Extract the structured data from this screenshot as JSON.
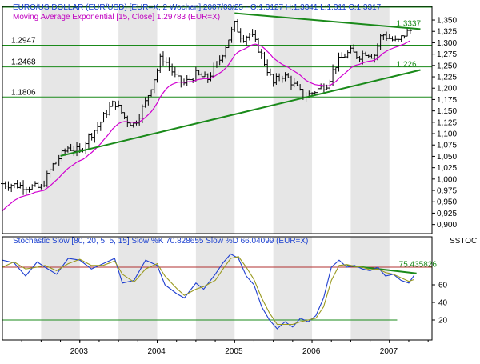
{
  "chart_data": [
    {
      "type": "ohlc",
      "title": "EURO/US DOLLAR (EUR/USD) [EUR=X, 2 Wochen] 2007/03/25 - O:1.3127 H:1.3341 L:1.311 C:1.3317",
      "indicator_label": "Moving Average Exponential [15, Close] 1.29783 (EUR=X)",
      "x_axis": {
        "tick_labels": [
          "2003",
          "2004",
          "2005",
          "2006",
          "2007"
        ]
      },
      "y_axis": {
        "range": [
          0.88,
          1.38
        ],
        "tick_values": [
          0.9,
          0.925,
          0.95,
          0.975,
          1.0,
          1.025,
          1.05,
          1.075,
          1.1,
          1.125,
          1.15,
          1.175,
          1.2,
          1.225,
          1.25,
          1.275,
          1.3,
          1.325,
          1.35
        ],
        "tick_labels": [
          "0,900",
          "0,925",
          "0,950",
          "0,975",
          "1,000",
          "1,025",
          "1,050",
          "1,075",
          "1,100",
          "1,125",
          "1,150",
          "1,175",
          "1,200",
          "1,225",
          "1,250",
          "1,275",
          "1,300",
          "1,325",
          "1,350"
        ]
      },
      "horizontal_levels": [
        {
          "label": "1.2947",
          "value": 1.2947
        },
        {
          "label": "1.2468",
          "value": 1.2468
        },
        {
          "label": "1.1806",
          "value": 1.1806
        }
      ],
      "trendlines": [
        {
          "label": "1.3337",
          "from": {
            "year": 2005.0,
            "value": 1.365
          },
          "to": {
            "year": 2007.4,
            "value": 1.33
          }
        },
        {
          "label": "1.226",
          "from": {
            "year": 2002.75,
            "value": 1.051
          },
          "to": {
            "year": 2007.4,
            "value": 1.24
          }
        }
      ],
      "price_path": {
        "description_points": [
          [
            2002.0,
            0.99
          ],
          [
            2002.25,
            0.985
          ],
          [
            2002.5,
            0.98
          ],
          [
            2002.65,
            1.03
          ],
          [
            2002.75,
            1.05
          ],
          [
            2002.85,
            1.07
          ],
          [
            2003.0,
            1.06
          ],
          [
            2003.1,
            1.09
          ],
          [
            2003.25,
            1.12
          ],
          [
            2003.35,
            1.15
          ],
          [
            2003.45,
            1.17
          ],
          [
            2003.6,
            1.13
          ],
          [
            2003.7,
            1.12
          ],
          [
            2003.85,
            1.17
          ],
          [
            2004.0,
            1.24
          ],
          [
            2004.05,
            1.27
          ],
          [
            2004.15,
            1.25
          ],
          [
            2004.25,
            1.22
          ],
          [
            2004.35,
            1.21
          ],
          [
            2004.5,
            1.23
          ],
          [
            2004.65,
            1.22
          ],
          [
            2004.8,
            1.26
          ],
          [
            2004.9,
            1.3
          ],
          [
            2005.0,
            1.34
          ],
          [
            2005.1,
            1.31
          ],
          [
            2005.2,
            1.32
          ],
          [
            2005.3,
            1.29
          ],
          [
            2005.4,
            1.25
          ],
          [
            2005.5,
            1.21
          ],
          [
            2005.6,
            1.23
          ],
          [
            2005.7,
            1.22
          ],
          [
            2005.8,
            1.2
          ],
          [
            2005.9,
            1.18
          ],
          [
            2006.0,
            1.19
          ],
          [
            2006.1,
            1.2
          ],
          [
            2006.2,
            1.21
          ],
          [
            2006.3,
            1.25
          ],
          [
            2006.4,
            1.27
          ],
          [
            2006.5,
            1.28
          ],
          [
            2006.6,
            1.27
          ],
          [
            2006.7,
            1.28
          ],
          [
            2006.8,
            1.27
          ],
          [
            2006.9,
            1.32
          ],
          [
            2007.0,
            1.31
          ],
          [
            2007.1,
            1.3
          ],
          [
            2007.2,
            1.32
          ],
          [
            2007.3,
            1.33
          ]
        ]
      }
    },
    {
      "type": "line",
      "title": "Stochastic Slow [80, 20, 5, 5, 15] Slow %K 70.828655 Slow %D 66.04099 (EUR=X)",
      "side_label": "SSTOC",
      "x_axis": {
        "tick_labels": [
          "2003",
          "2004",
          "2005",
          "2006",
          "2007"
        ]
      },
      "y_axis": {
        "range": [
          0,
          100
        ],
        "tick_values": [
          20,
          40,
          60
        ],
        "tick_labels": [
          "20",
          "40",
          "60"
        ]
      },
      "reference_lines": [
        80,
        20
      ],
      "trendline": {
        "label": "75.435826",
        "from": {
          "year": 2006.45,
          "value": 82
        },
        "to": {
          "year": 2007.35,
          "value": 73
        }
      },
      "series": [
        {
          "name": "Slow %K",
          "color": "#1f3fd0",
          "x": [
            2002.0,
            2002.15,
            2002.3,
            2002.45,
            2002.55,
            2002.7,
            2002.85,
            2003.0,
            2003.15,
            2003.3,
            2003.45,
            2003.55,
            2003.7,
            2003.85,
            2004.0,
            2004.1,
            2004.25,
            2004.35,
            2004.5,
            2004.6,
            2004.75,
            2004.85,
            2004.95,
            2005.05,
            2005.15,
            2005.25,
            2005.35,
            2005.45,
            2005.55,
            2005.65,
            2005.75,
            2005.85,
            2005.95,
            2006.05,
            2006.15,
            2006.25,
            2006.35,
            2006.45,
            2006.55,
            2006.65,
            2006.75,
            2006.85,
            2006.95,
            2007.05,
            2007.15,
            2007.25,
            2007.32
          ],
          "y": [
            88,
            85,
            70,
            86,
            80,
            72,
            90,
            88,
            78,
            84,
            90,
            62,
            65,
            88,
            82,
            60,
            50,
            45,
            62,
            55,
            72,
            85,
            95,
            90,
            70,
            60,
            35,
            20,
            10,
            18,
            12,
            22,
            18,
            25,
            45,
            80,
            88,
            80,
            82,
            78,
            76,
            80,
            70,
            72,
            65,
            62,
            70.8
          ]
        },
        {
          "name": "Slow %D",
          "color": "#9a9a20",
          "x": [
            2002.0,
            2002.15,
            2002.3,
            2002.45,
            2002.55,
            2002.7,
            2002.85,
            2003.0,
            2003.15,
            2003.3,
            2003.45,
            2003.55,
            2003.7,
            2003.85,
            2004.0,
            2004.1,
            2004.25,
            2004.35,
            2004.5,
            2004.6,
            2004.75,
            2004.85,
            2004.95,
            2005.05,
            2005.15,
            2005.25,
            2005.35,
            2005.45,
            2005.55,
            2005.65,
            2005.75,
            2005.85,
            2005.95,
            2006.05,
            2006.15,
            2006.25,
            2006.35,
            2006.45,
            2006.55,
            2006.65,
            2006.75,
            2006.85,
            2006.95,
            2007.05,
            2007.15,
            2007.25,
            2007.32
          ],
          "y": [
            80,
            86,
            78,
            80,
            82,
            76,
            84,
            89,
            82,
            82,
            87,
            72,
            63,
            78,
            84,
            70,
            56,
            48,
            55,
            58,
            65,
            78,
            90,
            92,
            80,
            66,
            45,
            28,
            15,
            15,
            15,
            18,
            20,
            22,
            35,
            65,
            82,
            83,
            81,
            80,
            77,
            78,
            74,
            72,
            68,
            64,
            66.0
          ]
        }
      ]
    }
  ]
}
